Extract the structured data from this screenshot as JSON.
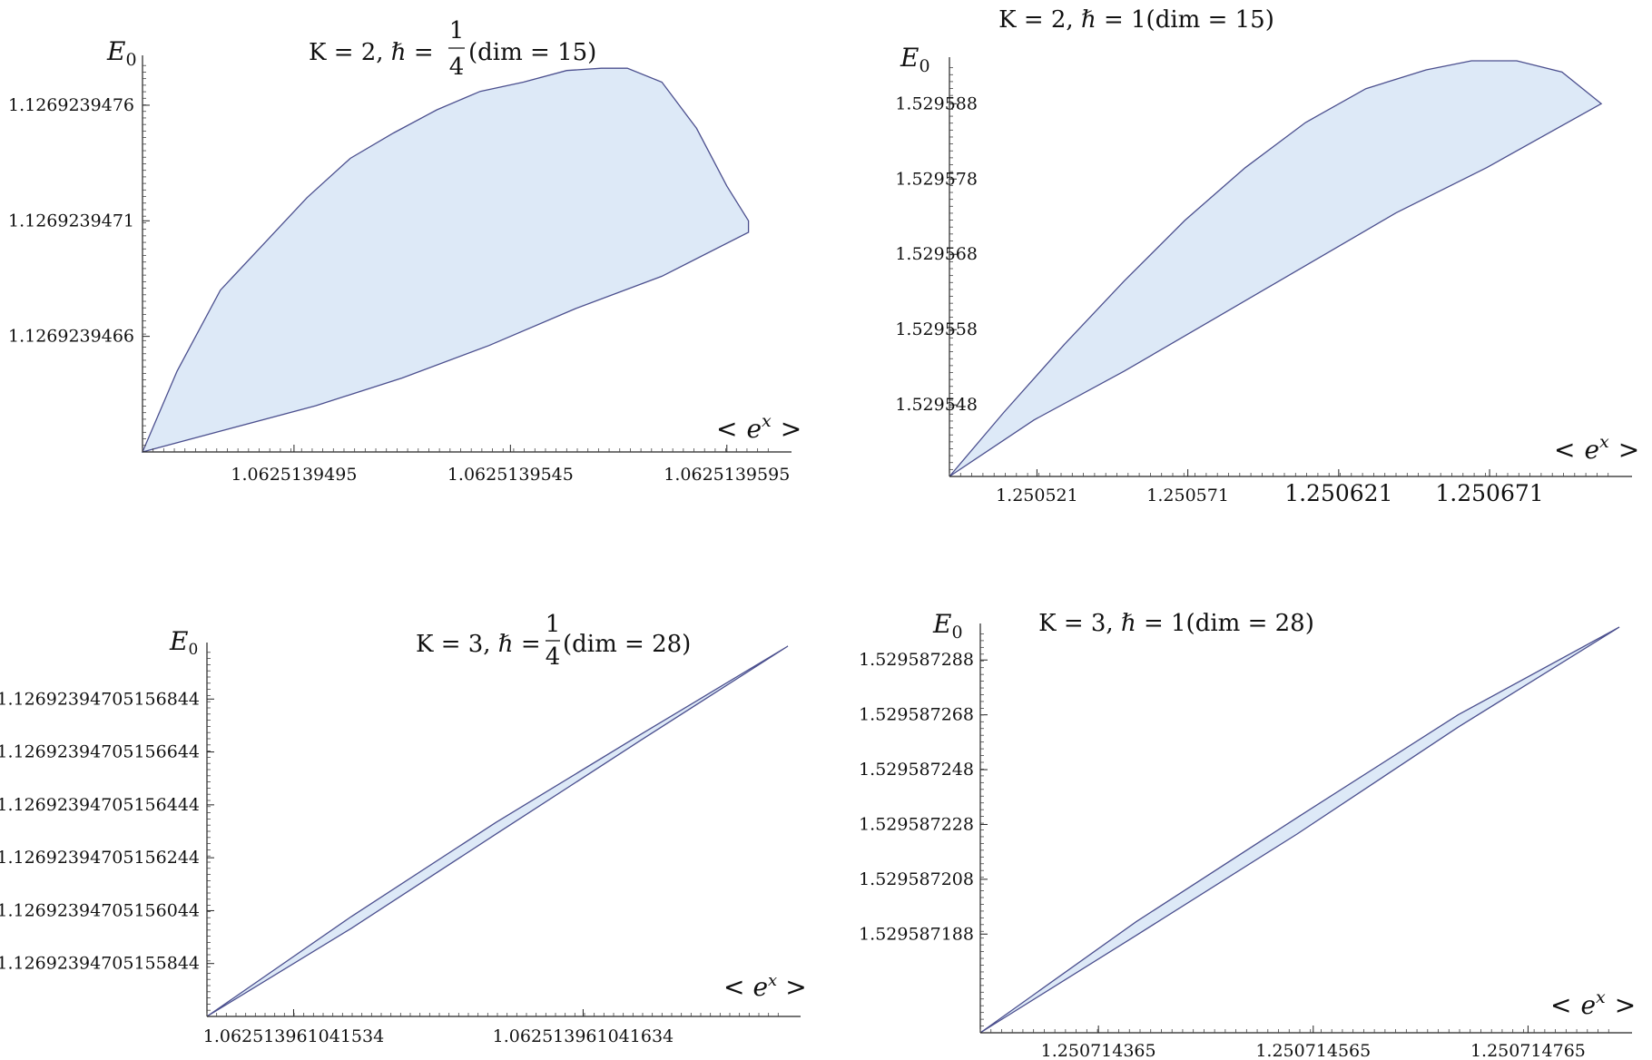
{
  "chart_data": [
    {
      "type": "area",
      "id": "p1",
      "title": "K = 2, ℏ = 1/4 (dim = 15)",
      "title_parts": {
        "lhs": "K = 2, ℏ = ",
        "num": "1",
        "den": "4",
        "rhs": "(dim = 15)"
      },
      "xlabel": "< e^x >",
      "xlabel_parts": {
        "open": "<",
        "base": "e",
        "exp": "x",
        "close": ">"
      },
      "ylabel": "E0",
      "ylabel_parts": {
        "base": "E",
        "sub": "0"
      },
      "xlim": [
        1.062513946,
        1.0625139607
      ],
      "ylim": [
        1.1269239461,
        1.1269239478
      ],
      "xticks": [
        {
          "value": 1.0625139495,
          "label": "1.0625139495"
        },
        {
          "value": 1.0625139545,
          "label": "1.0625139545"
        },
        {
          "value": 1.0625139595,
          "label": "1.0625139595"
        }
      ],
      "yticks": [
        {
          "value": 1.1269239466,
          "label": "1.1269239466"
        },
        {
          "value": 1.1269239471,
          "label": "1.1269239471"
        },
        {
          "value": 1.1269239476,
          "label": "1.1269239476"
        }
      ],
      "series": [
        {
          "values_x": [
            1.062513946,
            1.0625139468,
            1.0625139478,
            1.0625139488,
            1.0625139498,
            1.0625139508,
            1.0625139518,
            1.0625139528,
            1.0625139538,
            1.0625139548,
            1.0625139558,
            1.0625139566,
            1.0625139572,
            1.062513958,
            1.0625139588,
            1.0625139595,
            1.06251396
          ],
          "values_y": [
            1.1269239461,
            1.12692394645,
            1.1269239468,
            1.126923947,
            1.1269239472,
            1.12692394737,
            1.12692394748,
            1.12692394758,
            1.12692394766,
            1.1269239477,
            1.12692394775,
            1.12692394776,
            1.12692394776,
            1.1269239477,
            1.1269239475,
            1.12692394725,
            1.1269239471
          ]
        },
        {
          "values_x": [
            1.062513946,
            1.062513948,
            1.06251395,
            1.062513952,
            1.062513954,
            1.062513956,
            1.062513958,
            1.06251396
          ],
          "values_y": [
            1.1269239461,
            1.1269239462,
            1.1269239463,
            1.12692394642,
            1.12692394656,
            1.12692394672,
            1.12692394686,
            1.12692394705
          ]
        }
      ]
    },
    {
      "type": "area",
      "id": "p2",
      "title": "K = 2, ℏ = 1(dim = 15)",
      "xlabel": "< e^x >",
      "xlabel_parts": {
        "open": "<",
        "base": "e",
        "exp": "x",
        "close": ">"
      },
      "ylabel": "E0",
      "ylabel_parts": {
        "base": "E",
        "sub": "0"
      },
      "xlim": [
        1.250492,
        1.250714
      ],
      "ylim": [
        1.5295385,
        1.5295937
      ],
      "xticks": [
        {
          "value": 1.250521,
          "label": "1.250521"
        },
        {
          "value": 1.250571,
          "label": "1.250571"
        },
        {
          "value": 1.250621,
          "label": "1.250621"
        },
        {
          "value": 1.250671,
          "label": "1.250671"
        }
      ],
      "xticks_large_from": 2,
      "yticks": [
        {
          "value": 1.529548,
          "label": "1.529548"
        },
        {
          "value": 1.529558,
          "label": "1.529558"
        },
        {
          "value": 1.529568,
          "label": "1.529568"
        },
        {
          "value": 1.529578,
          "label": "1.529578"
        },
        {
          "value": 1.529588,
          "label": "1.529588"
        }
      ],
      "series": [
        {
          "values_x": [
            1.250492,
            1.25051,
            1.25053,
            1.25055,
            1.25057,
            1.25059,
            1.25061,
            1.25063,
            1.25065,
            1.250665,
            1.25068,
            1.250695,
            1.250708
          ],
          "values_y": [
            1.5295385,
            1.529547,
            1.529556,
            1.5295645,
            1.5295725,
            1.5295795,
            1.5295855,
            1.52959,
            1.5295925,
            1.5295937,
            1.5295937,
            1.5295922,
            1.529588
          ]
        },
        {
          "values_x": [
            1.250492,
            1.25052,
            1.25055,
            1.25058,
            1.25061,
            1.25064,
            1.25067,
            1.250708
          ],
          "values_y": [
            1.5295385,
            1.529546,
            1.5295525,
            1.5295595,
            1.5295665,
            1.5295735,
            1.5295795,
            1.529588
          ]
        }
      ]
    },
    {
      "type": "area",
      "id": "p3",
      "title": "K = 3, ℏ = 1/4 (dim = 28)",
      "title_parts": {
        "lhs": "K = 3, ℏ = ",
        "num": "1",
        "den": "4",
        "rhs": "(dim = 28)"
      },
      "xlabel": "< e^x >",
      "xlabel_parts": {
        "open": "<",
        "base": "e",
        "exp": "x",
        "close": ">"
      },
      "ylabel": "E0",
      "ylabel_parts": {
        "base": "E",
        "sub": "0"
      },
      "xlim": [
        1.062513961041504,
        1.062513961041705
      ],
      "ylim": [
        1.126923947051556,
        1.12692394705157
      ],
      "xticks": [
        {
          "value": 1.062513961041534,
          "label": "1.062513961041534"
        },
        {
          "value": 1.062513961041634,
          "label": "1.062513961041634"
        }
      ],
      "yticks": [
        {
          "value": 1.126923947051558,
          "label": "1.12692394705155844"
        },
        {
          "value": 1.12692394705156,
          "label": "1.12692394705156044"
        },
        {
          "value": 1.126923947051562,
          "label": "1.12692394705156244"
        },
        {
          "value": 1.126923947051564,
          "label": "1.12692394705156444"
        },
        {
          "value": 1.126923947051566,
          "label": "1.12692394705156644"
        },
        {
          "value": 1.126923947051568,
          "label": "1.12692394705156844"
        }
      ],
      "series": [
        {
          "values_x": [
            1.062513961041504,
            1.062513961041554,
            1.062513961041604,
            1.062513961041654,
            1.062513961041705
          ],
          "values_y": [
            1.126923947051556,
            1.1269239470515597,
            1.1269239470515633,
            1.1269239470515666,
            1.12692394705157
          ]
        },
        {
          "values_x": [
            1.062513961041504,
            1.062513961041554,
            1.062513961041604,
            1.062513961041654,
            1.062513961041705
          ],
          "values_y": [
            1.126923947051556,
            1.1269239470515593,
            1.1269239470515628,
            1.1269239470515664,
            1.12692394705157
          ]
        }
      ]
    },
    {
      "type": "area",
      "id": "p4",
      "title": "K = 3, ℏ = 1(dim = 28)",
      "xlabel": "< e^x >",
      "xlabel_parts": {
        "open": "<",
        "base": "e",
        "exp": "x",
        "close": ">"
      },
      "ylabel": "E0",
      "ylabel_parts": {
        "base": "E",
        "sub": "0"
      },
      "xlim": [
        1.250714255,
        1.25071485
      ],
      "ylim": [
        1.529587152,
        1.5295873
      ],
      "xticks": [
        {
          "value": 1.250714365,
          "label": "1.250714365"
        },
        {
          "value": 1.250714565,
          "label": "1.250714565"
        },
        {
          "value": 1.250714765,
          "label": "1.250714765"
        }
      ],
      "yticks": [
        {
          "value": 1.529587188,
          "label": "1.529587188"
        },
        {
          "value": 1.529587208,
          "label": "1.529587208"
        },
        {
          "value": 1.529587228,
          "label": "1.529587228"
        },
        {
          "value": 1.529587248,
          "label": "1.529587248"
        },
        {
          "value": 1.529587268,
          "label": "1.529587268"
        },
        {
          "value": 1.529587288,
          "label": "1.529587288"
        }
      ],
      "series": [
        {
          "values_x": [
            1.250714255,
            1.2507144,
            1.25071455,
            1.2507147,
            1.25071485
          ],
          "values_y": [
            1.529587152,
            1.5295871925,
            1.5295872305,
            1.529587268,
            1.5295873
          ]
        },
        {
          "values_x": [
            1.250714255,
            1.2507144,
            1.25071455,
            1.2507147,
            1.25071485
          ],
          "values_y": [
            1.529587152,
            1.5295871875,
            1.5295872245,
            1.5295872635,
            1.5295873
          ]
        }
      ]
    }
  ]
}
